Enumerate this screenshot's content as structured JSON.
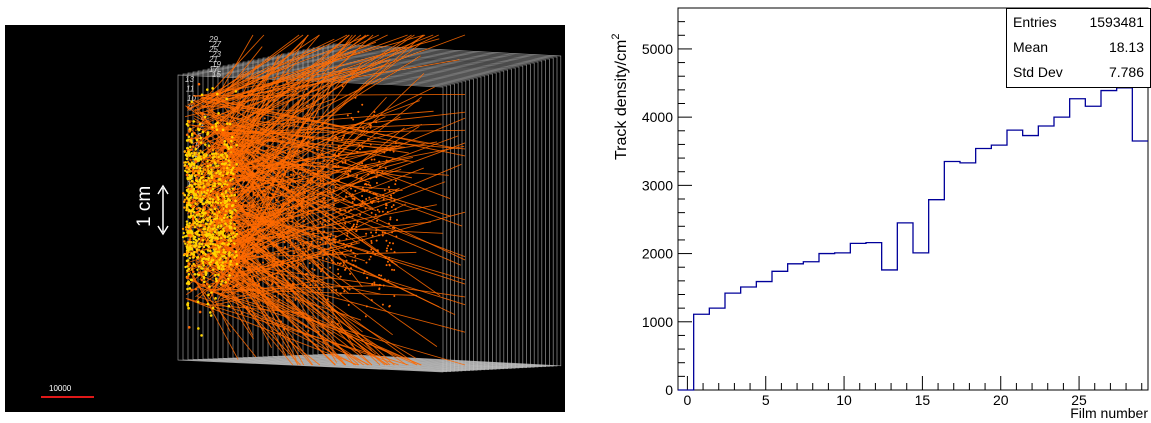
{
  "event_display": {
    "scale_bar_label": "10000",
    "scale_annotation": "1 cm",
    "plate_labels": [
      "29",
      "27",
      "25",
      "23",
      "21",
      "19",
      "17",
      "15",
      "13",
      "11",
      "10",
      "9",
      "8",
      "7",
      "6",
      "5",
      "4",
      "3",
      "2",
      "1"
    ],
    "colors": {
      "background": "#000000",
      "tracks": "#ff6a00",
      "vertices": "#ffd400",
      "plates": "#c8c8c8",
      "scale_bar": "#e01818"
    }
  },
  "chart_data": {
    "type": "histogram",
    "xlabel": "Film number",
    "ylabel": "Track density/cm",
    "ylabel_superscript": "2",
    "xlim": [
      -0.6,
      29.4
    ],
    "ylim": [
      0,
      5600
    ],
    "x_ticks": [
      "0",
      "5",
      "10",
      "15",
      "20",
      "25"
    ],
    "y_ticks": [
      "0",
      "1000",
      "2000",
      "3000",
      "4000",
      "5000"
    ],
    "bin_edges": [
      -0.6,
      0.4,
      1.4,
      2.4,
      3.4,
      4.4,
      5.4,
      6.4,
      7.4,
      8.4,
      9.4,
      10.4,
      11.4,
      12.4,
      13.4,
      14.4,
      15.4,
      16.4,
      17.4,
      18.4,
      19.4,
      20.4,
      21.4,
      22.4,
      23.4,
      24.4,
      25.4,
      26.4,
      27.4,
      28.4,
      29.4
    ],
    "values": [
      0,
      1110,
      1200,
      1420,
      1510,
      1590,
      1740,
      1850,
      1880,
      2000,
      2010,
      2150,
      2160,
      1760,
      2450,
      2010,
      2790,
      3350,
      3330,
      3540,
      3590,
      3810,
      3730,
      3870,
      4000,
      4270,
      4160,
      4390,
      4430,
      3650
    ],
    "line_color": "#00009a",
    "stats": {
      "entries_label": "Entries",
      "entries": "1593481",
      "mean_label": "Mean",
      "mean": "18.13",
      "std_label": "Std Dev",
      "std": "7.786"
    }
  }
}
